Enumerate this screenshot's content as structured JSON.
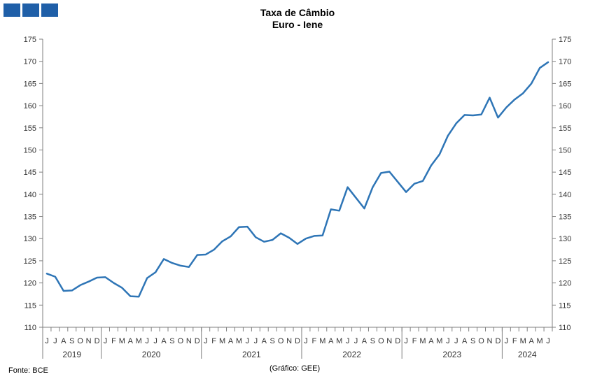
{
  "header": {
    "logo": "logo",
    "title_line1": "Taxa de Câmbio",
    "title_line2": "Euro - Iene"
  },
  "footer": {
    "source": "Fonte: BCE",
    "credit": "(Gráfico: GEE)"
  },
  "colors": {
    "line": "#2e75b6",
    "logo": "#1f5fa8",
    "axis": "#7f7f7f"
  },
  "chart_data": {
    "type": "line",
    "title": "Taxa de Câmbio Euro - Iene",
    "ylim": [
      110,
      175
    ],
    "yticks": [
      110,
      115,
      120,
      125,
      130,
      135,
      140,
      145,
      150,
      155,
      160,
      165,
      170,
      175
    ],
    "y_axis_both_sides": true,
    "grid": false,
    "legend": "none",
    "month_labels": [
      "J",
      "J",
      "A",
      "S",
      "O",
      "N",
      "D",
      "J",
      "F",
      "M",
      "A",
      "M",
      "J",
      "J",
      "A",
      "S",
      "O",
      "N",
      "D",
      "J",
      "F",
      "M",
      "A",
      "M",
      "J",
      "J",
      "A",
      "S",
      "O",
      "N",
      "D",
      "J",
      "F",
      "M",
      "A",
      "M",
      "J",
      "J",
      "A",
      "S",
      "O",
      "N",
      "D",
      "J",
      "F",
      "M",
      "A",
      "M",
      "J",
      "J",
      "A",
      "S",
      "O",
      "N",
      "D",
      "J",
      "F",
      "M",
      "A",
      "M",
      "J"
    ],
    "years": [
      {
        "label": "2019",
        "months": 7
      },
      {
        "label": "2020",
        "months": 12
      },
      {
        "label": "2021",
        "months": 12
      },
      {
        "label": "2022",
        "months": 12
      },
      {
        "label": "2023",
        "months": 12
      },
      {
        "label": "2024",
        "months": 6
      }
    ],
    "series": [
      {
        "values": [
          122.1,
          121.4,
          118.2,
          118.3,
          119.5,
          120.3,
          121.2,
          121.3,
          120.0,
          118.9,
          117.0,
          116.9,
          121.1,
          122.4,
          125.4,
          124.5,
          123.9,
          123.6,
          126.3,
          126.4,
          127.5,
          129.4,
          130.5,
          132.6,
          132.7,
          130.3,
          129.3,
          129.7,
          131.2,
          130.2,
          128.8,
          130.0,
          130.6,
          130.7,
          136.6,
          136.3,
          141.6,
          139.2,
          136.8,
          141.6,
          144.8,
          145.1,
          142.8,
          140.5,
          142.4,
          143.0,
          146.5,
          149.0,
          153.2,
          156.0,
          157.9,
          157.8,
          158.0,
          161.8,
          157.3,
          159.6,
          161.4,
          162.8,
          165.0,
          168.5,
          169.8
        ]
      }
    ]
  }
}
